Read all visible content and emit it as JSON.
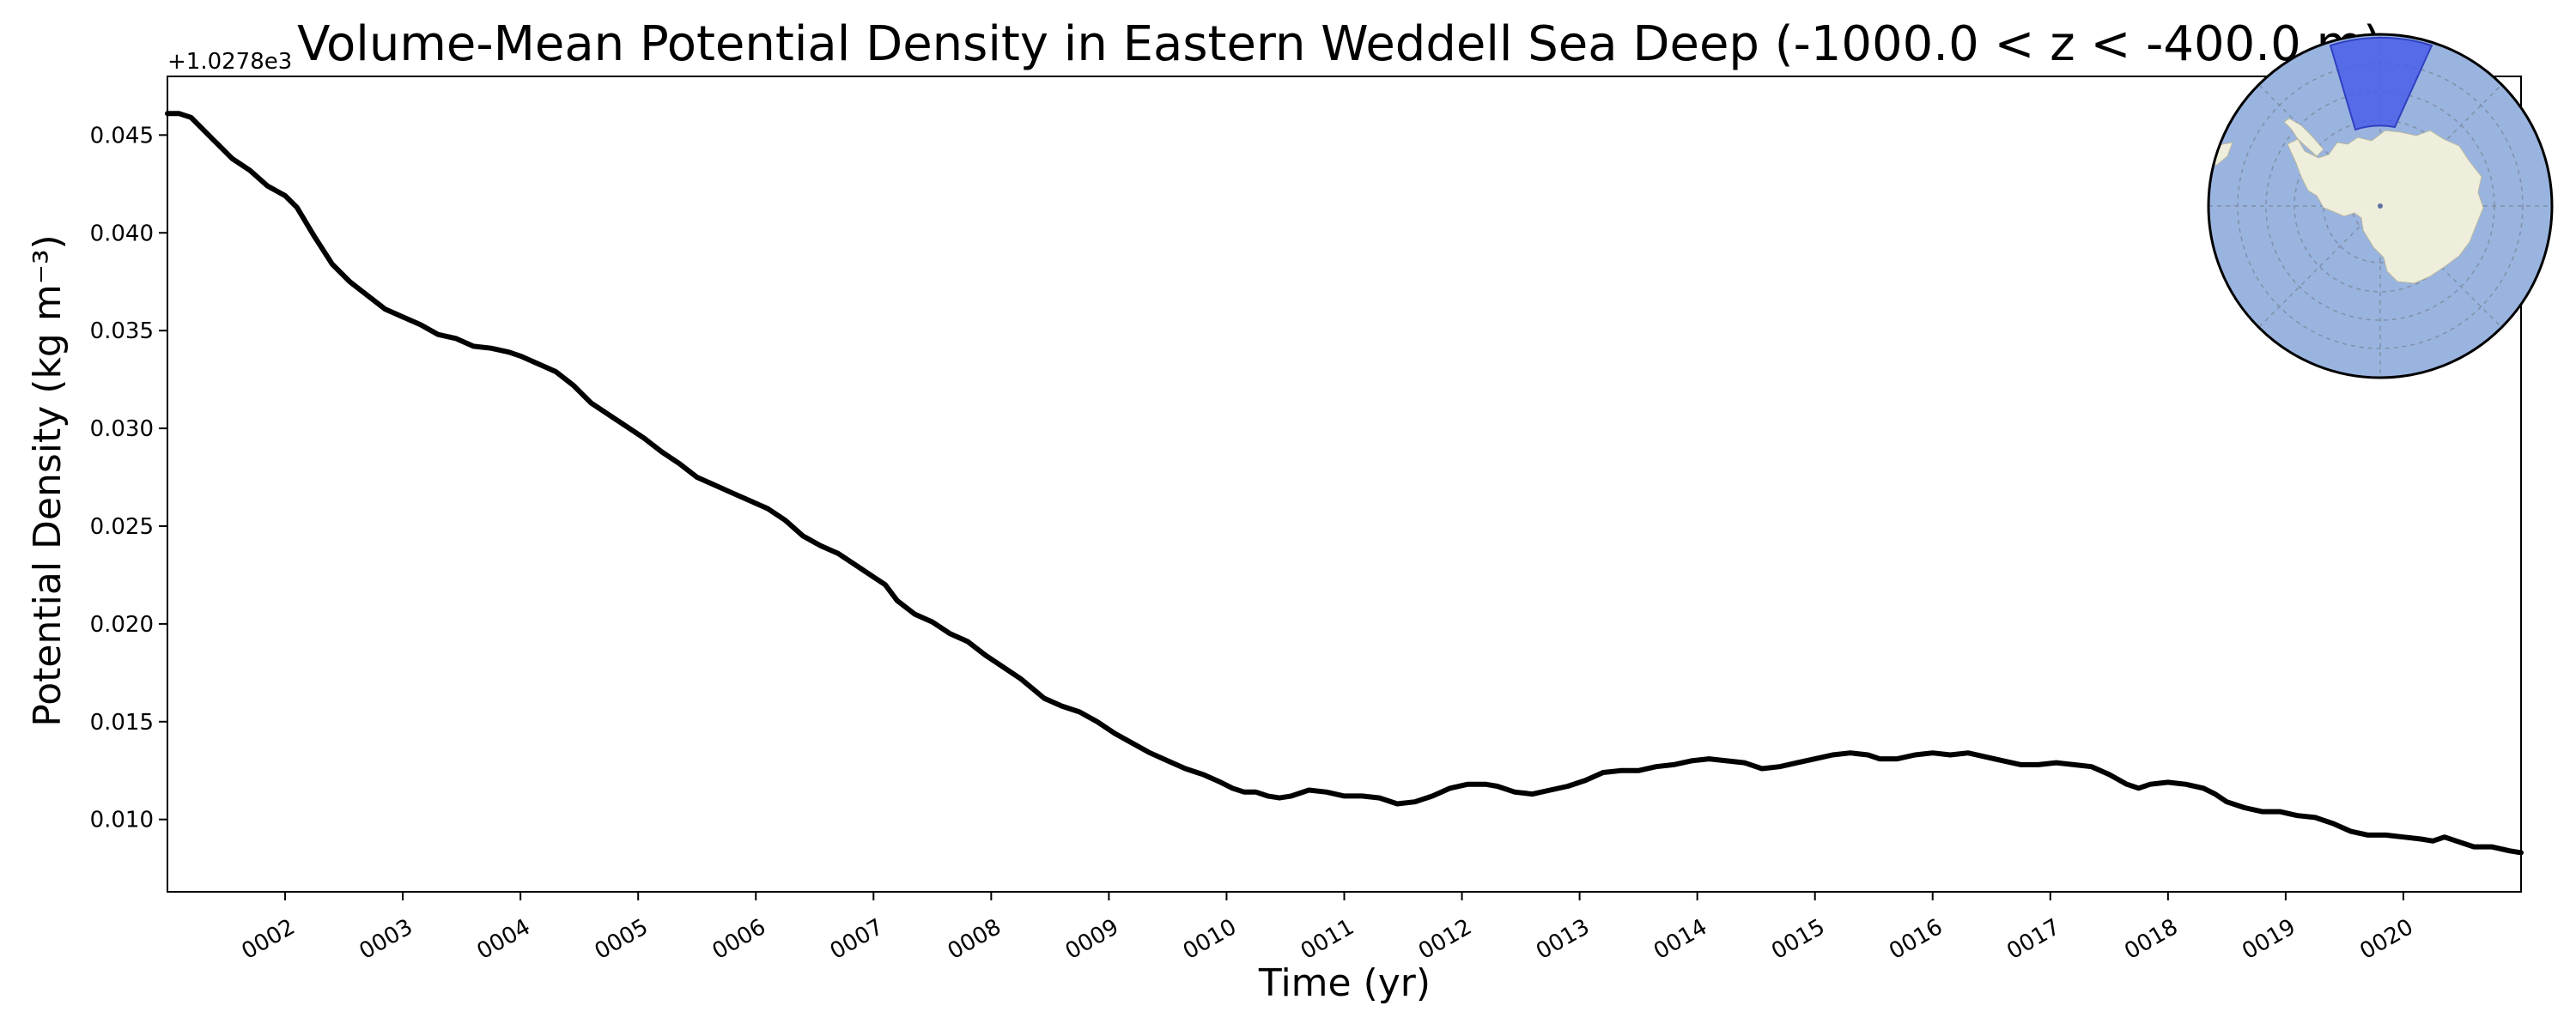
{
  "chart_data": {
    "type": "line",
    "title": "Volume-Mean Potential Density in Eastern Weddell Sea Deep (-1000.0 < z < -400.0 m)",
    "xlabel": "Time (yr)",
    "ylabel": "Potential Density (kg m⁻³)",
    "offset_label": "+1.0278e3",
    "xlim": [
      1.0,
      21.0
    ],
    "ylim": [
      0.0063,
      0.048
    ],
    "x_ticks": [
      2,
      3,
      4,
      5,
      6,
      7,
      8,
      9,
      10,
      11,
      12,
      13,
      14,
      15,
      16,
      17,
      18,
      19,
      20
    ],
    "x_tick_labels": [
      "0002",
      "0003",
      "0004",
      "0005",
      "0006",
      "0007",
      "0008",
      "0009",
      "0010",
      "0011",
      "0012",
      "0013",
      "0014",
      "0015",
      "0016",
      "0017",
      "0018",
      "0019",
      "0020"
    ],
    "y_ticks": [
      0.01,
      0.015,
      0.02,
      0.025,
      0.03,
      0.035,
      0.04,
      0.045
    ],
    "y_tick_labels": [
      "0.010",
      "0.015",
      "0.020",
      "0.025",
      "0.030",
      "0.035",
      "0.040",
      "0.045"
    ],
    "grid": false,
    "series": [
      {
        "color": "#000000",
        "points": [
          [
            1.0,
            0.0461
          ],
          [
            1.1,
            0.0461
          ],
          [
            1.2,
            0.0459
          ],
          [
            1.3,
            0.0453
          ],
          [
            1.4,
            0.0447
          ],
          [
            1.55,
            0.0438
          ],
          [
            1.7,
            0.0432
          ],
          [
            1.85,
            0.0424
          ],
          [
            2.0,
            0.0419
          ],
          [
            2.1,
            0.0413
          ],
          [
            2.25,
            0.0398
          ],
          [
            2.4,
            0.0384
          ],
          [
            2.55,
            0.0375
          ],
          [
            2.7,
            0.0368
          ],
          [
            2.85,
            0.0361
          ],
          [
            3.0,
            0.0357
          ],
          [
            3.15,
            0.0353
          ],
          [
            3.3,
            0.0348
          ],
          [
            3.45,
            0.0346
          ],
          [
            3.6,
            0.0342
          ],
          [
            3.75,
            0.0341
          ],
          [
            3.9,
            0.0339
          ],
          [
            4.0,
            0.0337
          ],
          [
            4.15,
            0.0333
          ],
          [
            4.3,
            0.0329
          ],
          [
            4.45,
            0.0322
          ],
          [
            4.6,
            0.0313
          ],
          [
            4.75,
            0.0307
          ],
          [
            4.9,
            0.0301
          ],
          [
            5.05,
            0.0295
          ],
          [
            5.2,
            0.0288
          ],
          [
            5.35,
            0.0282
          ],
          [
            5.5,
            0.0275
          ],
          [
            5.65,
            0.0271
          ],
          [
            5.8,
            0.0267
          ],
          [
            5.95,
            0.0263
          ],
          [
            6.1,
            0.0259
          ],
          [
            6.25,
            0.0253
          ],
          [
            6.4,
            0.0245
          ],
          [
            6.55,
            0.024
          ],
          [
            6.7,
            0.0236
          ],
          [
            6.85,
            0.023
          ],
          [
            7.0,
            0.0224
          ],
          [
            7.1,
            0.022
          ],
          [
            7.2,
            0.0212
          ],
          [
            7.35,
            0.0205
          ],
          [
            7.5,
            0.0201
          ],
          [
            7.65,
            0.0195
          ],
          [
            7.8,
            0.0191
          ],
          [
            7.95,
            0.0184
          ],
          [
            8.1,
            0.0178
          ],
          [
            8.25,
            0.0172
          ],
          [
            8.35,
            0.0167
          ],
          [
            8.45,
            0.0162
          ],
          [
            8.6,
            0.0158
          ],
          [
            8.75,
            0.0155
          ],
          [
            8.9,
            0.015
          ],
          [
            9.05,
            0.0144
          ],
          [
            9.2,
            0.0139
          ],
          [
            9.35,
            0.0134
          ],
          [
            9.5,
            0.013
          ],
          [
            9.65,
            0.0126
          ],
          [
            9.8,
            0.0123
          ],
          [
            9.95,
            0.0119
          ],
          [
            10.05,
            0.0116
          ],
          [
            10.15,
            0.0114
          ],
          [
            10.25,
            0.0114
          ],
          [
            10.35,
            0.0112
          ],
          [
            10.45,
            0.0111
          ],
          [
            10.55,
            0.0112
          ],
          [
            10.7,
            0.0115
          ],
          [
            10.85,
            0.0114
          ],
          [
            11.0,
            0.0112
          ],
          [
            11.15,
            0.0112
          ],
          [
            11.3,
            0.0111
          ],
          [
            11.45,
            0.0108
          ],
          [
            11.6,
            0.0109
          ],
          [
            11.75,
            0.0112
          ],
          [
            11.9,
            0.0116
          ],
          [
            12.05,
            0.0118
          ],
          [
            12.2,
            0.0118
          ],
          [
            12.3,
            0.0117
          ],
          [
            12.45,
            0.0114
          ],
          [
            12.6,
            0.0113
          ],
          [
            12.75,
            0.0115
          ],
          [
            12.9,
            0.0117
          ],
          [
            13.05,
            0.012
          ],
          [
            13.2,
            0.0124
          ],
          [
            13.35,
            0.0125
          ],
          [
            13.5,
            0.0125
          ],
          [
            13.65,
            0.0127
          ],
          [
            13.8,
            0.0128
          ],
          [
            13.95,
            0.013
          ],
          [
            14.1,
            0.0131
          ],
          [
            14.25,
            0.013
          ],
          [
            14.4,
            0.0129
          ],
          [
            14.55,
            0.0126
          ],
          [
            14.7,
            0.0127
          ],
          [
            14.85,
            0.0129
          ],
          [
            15.0,
            0.0131
          ],
          [
            15.15,
            0.0133
          ],
          [
            15.3,
            0.0134
          ],
          [
            15.45,
            0.0133
          ],
          [
            15.55,
            0.0131
          ],
          [
            15.7,
            0.0131
          ],
          [
            15.85,
            0.0133
          ],
          [
            16.0,
            0.0134
          ],
          [
            16.15,
            0.0133
          ],
          [
            16.3,
            0.0134
          ],
          [
            16.45,
            0.0132
          ],
          [
            16.6,
            0.013
          ],
          [
            16.75,
            0.0128
          ],
          [
            16.9,
            0.0128
          ],
          [
            17.05,
            0.0129
          ],
          [
            17.2,
            0.0128
          ],
          [
            17.35,
            0.0127
          ],
          [
            17.5,
            0.0123
          ],
          [
            17.65,
            0.0118
          ],
          [
            17.75,
            0.0116
          ],
          [
            17.85,
            0.0118
          ],
          [
            18.0,
            0.0119
          ],
          [
            18.15,
            0.0118
          ],
          [
            18.3,
            0.0116
          ],
          [
            18.4,
            0.0113
          ],
          [
            18.5,
            0.0109
          ],
          [
            18.65,
            0.0106
          ],
          [
            18.8,
            0.0104
          ],
          [
            18.95,
            0.0104
          ],
          [
            19.1,
            0.0102
          ],
          [
            19.25,
            0.0101
          ],
          [
            19.4,
            0.0098
          ],
          [
            19.55,
            0.0094
          ],
          [
            19.7,
            0.0092
          ],
          [
            19.85,
            0.0092
          ],
          [
            20.0,
            0.0091
          ],
          [
            20.15,
            0.009
          ],
          [
            20.25,
            0.0089
          ],
          [
            20.35,
            0.0091
          ],
          [
            20.45,
            0.0089
          ],
          [
            20.6,
            0.0086
          ],
          [
            20.75,
            0.0086
          ],
          [
            20.9,
            0.0084
          ],
          [
            21.0,
            0.0083
          ]
        ]
      }
    ],
    "inset_map": {
      "projection": "south polar stereographic",
      "highlighted_region": "Eastern Weddell Sea",
      "ocean_color": "#9ab4e0",
      "land_color": "#efeedc",
      "region_color": "#4a5ee8"
    }
  }
}
